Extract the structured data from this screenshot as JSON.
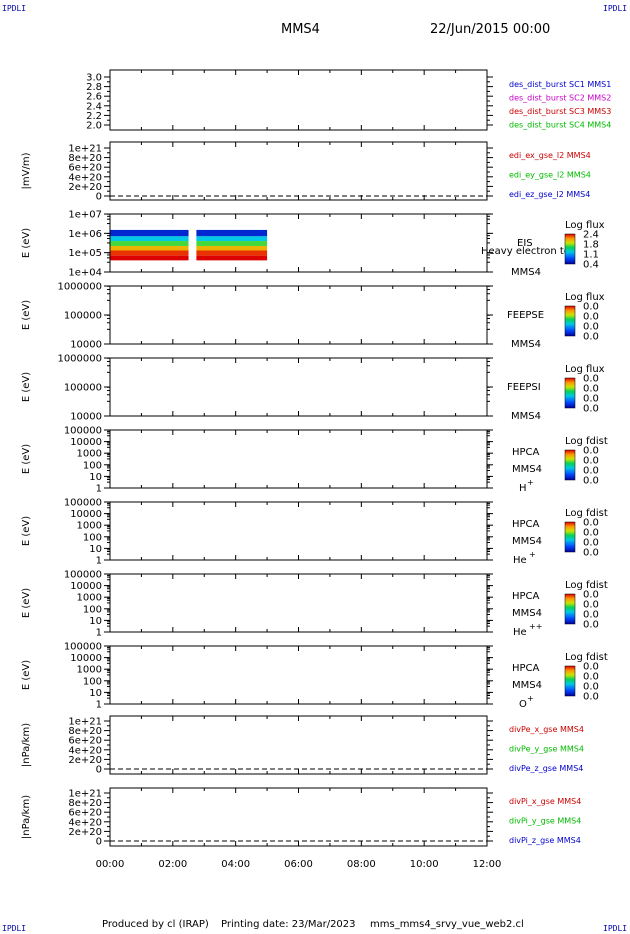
{
  "header": {
    "corner_label": "IPDLI",
    "spacecraft": "MMS4",
    "datetime": "22/Jun/2015 00:00"
  },
  "footer": {
    "produced_by": "Produced by cl (IRAP)",
    "printing_date": "Printing date: 23/Mar/2023",
    "script_name": "mms_mms4_srvy_vue_web2.cl"
  },
  "colors": {
    "blue": "#0000cc",
    "magenta": "#cc00cc",
    "red": "#cc0000",
    "green": "#00bb00"
  },
  "chart_data": [
    {
      "type": "line",
      "panel": 1,
      "ylabel": "",
      "yticks": [
        "3.0",
        "2.8",
        "2.6",
        "2.4",
        "2.2",
        "2.0"
      ],
      "ylim": [
        1.9,
        3.05
      ],
      "legend": [
        {
          "text": "des_dist_burst SC1 MMS1",
          "color": "#0000cc"
        },
        {
          "text": "des_dist_burst SC2 MMS2",
          "color": "#cc00cc"
        },
        {
          "text": "des_dist_burst SC3 MMS3",
          "color": "#cc0000"
        },
        {
          "text": "des_dist_burst SC4 MMS4",
          "color": "#00bb00"
        }
      ],
      "series": []
    },
    {
      "type": "line",
      "panel": 2,
      "ylabel": "|mV/m)",
      "yticks": [
        "1e+21",
        "8e+20",
        "6e+20",
        "4e+20",
        "2e+20",
        "0"
      ],
      "ylim": [
        0,
        1e+21
      ],
      "legend": [
        {
          "text": "edi_ex_gse_l2 MMS4",
          "color": "#cc0000"
        },
        {
          "text": "edi_ey_gse_l2 MMS4",
          "color": "#00bb00"
        },
        {
          "text": "edi_ez_gse_l2 MMS4",
          "color": "#0000cc"
        }
      ],
      "zero_line": true,
      "series": []
    },
    {
      "type": "heatmap",
      "panel": 3,
      "ylabel": "E (eV)",
      "yticks": [
        "1e+07",
        "1e+06",
        "1e+05",
        "1e+04"
      ],
      "ylim": [
        10000,
        10000000
      ],
      "yscale": "log",
      "right_labels": [
        "EIS",
        "Heavy electron tof",
        "MMS4"
      ],
      "colorbar": {
        "title": "Log flux",
        "ticks": [
          "2.4",
          "1.8",
          "1.1",
          "0.4"
        ]
      },
      "data_blocks": [
        {
          "t_start": "00:00",
          "t_end": "02:30"
        },
        {
          "t_start": "02:45",
          "t_end": "05:00"
        }
      ],
      "energy_bands": [
        {
          "e_lo": 700000,
          "e_hi": 1500000,
          "level": 0.6
        },
        {
          "e_lo": 400000,
          "e_hi": 700000,
          "level": 1.2
        },
        {
          "e_lo": 220000,
          "e_hi": 400000,
          "level": 1.6
        },
        {
          "e_lo": 130000,
          "e_hi": 220000,
          "level": 2.0
        },
        {
          "e_lo": 70000,
          "e_hi": 130000,
          "level": 2.3
        },
        {
          "e_lo": 40000,
          "e_hi": 70000,
          "level": 2.4
        }
      ]
    },
    {
      "type": "heatmap",
      "panel": 4,
      "ylabel": "E (eV)",
      "yticks": [
        "1000000",
        "100000",
        "10000"
      ],
      "ylim": [
        10000,
        1000000
      ],
      "yscale": "log",
      "right_labels": [
        "FEEPSE",
        "MMS4"
      ],
      "colorbar": {
        "title": "Log flux",
        "ticks": [
          "0.0",
          "0.0",
          "0.0",
          "0.0"
        ]
      }
    },
    {
      "type": "heatmap",
      "panel": 5,
      "ylabel": "E (eV)",
      "yticks": [
        "1000000",
        "100000",
        "10000"
      ],
      "ylim": [
        10000,
        1000000
      ],
      "yscale": "log",
      "right_labels": [
        "FEEPSI",
        "MMS4"
      ],
      "colorbar": {
        "title": "Log flux",
        "ticks": [
          "0.0",
          "0.0",
          "0.0",
          "0.0"
        ]
      }
    },
    {
      "type": "heatmap",
      "panel": 6,
      "ylabel": "E (eV)",
      "yticks": [
        "100000",
        "10000",
        "1000",
        "100",
        "10",
        "1"
      ],
      "ylim": [
        1,
        100000
      ],
      "yscale": "log",
      "right_labels": [
        "HPCA",
        "MMS4"
      ],
      "species": "H",
      "species_charge": "+",
      "colorbar": {
        "title": "Log fdist",
        "ticks": [
          "0.0",
          "0.0",
          "0.0",
          "0.0"
        ]
      }
    },
    {
      "type": "heatmap",
      "panel": 7,
      "ylabel": "E (eV)",
      "yticks": [
        "100000",
        "10000",
        "1000",
        "100",
        "10",
        "1"
      ],
      "ylim": [
        1,
        100000
      ],
      "yscale": "log",
      "right_labels": [
        "HPCA",
        "MMS4"
      ],
      "species": "He",
      "species_charge": "+",
      "colorbar": {
        "title": "Log fdist",
        "ticks": [
          "0.0",
          "0.0",
          "0.0",
          "0.0"
        ]
      }
    },
    {
      "type": "heatmap",
      "panel": 8,
      "ylabel": "E (eV)",
      "yticks": [
        "100000",
        "10000",
        "1000",
        "100",
        "10",
        "1"
      ],
      "ylim": [
        1,
        100000
      ],
      "yscale": "log",
      "right_labels": [
        "HPCA",
        "MMS4"
      ],
      "species": "He",
      "species_charge": "++",
      "colorbar": {
        "title": "Log fdist",
        "ticks": [
          "0.0",
          "0.0",
          "0.0",
          "0.0"
        ]
      }
    },
    {
      "type": "heatmap",
      "panel": 9,
      "ylabel": "E (eV)",
      "yticks": [
        "100000",
        "10000",
        "1000",
        "100",
        "10",
        "1"
      ],
      "ylim": [
        1,
        100000
      ],
      "yscale": "log",
      "right_labels": [
        "HPCA",
        "MMS4"
      ],
      "species": "O",
      "species_charge": "+",
      "colorbar": {
        "title": "Log fdist",
        "ticks": [
          "0.0",
          "0.0",
          "0.0",
          "0.0"
        ]
      }
    },
    {
      "type": "line",
      "panel": 10,
      "ylabel": "|nPa/km)",
      "yticks": [
        "1e+21",
        "8e+20",
        "6e+20",
        "4e+20",
        "2e+20",
        "0"
      ],
      "ylim": [
        0,
        1e+21
      ],
      "legend": [
        {
          "text": "divPe_x_gse MMS4",
          "color": "#cc0000"
        },
        {
          "text": "divPe_y_gse MMS4",
          "color": "#00bb00"
        },
        {
          "text": "divPe_z_gse MMS4",
          "color": "#0000cc"
        }
      ],
      "zero_line": true,
      "series": []
    },
    {
      "type": "line",
      "panel": 11,
      "ylabel": "|nPa/km)",
      "yticks": [
        "1e+21",
        "8e+20",
        "6e+20",
        "4e+20",
        "2e+20",
        "0"
      ],
      "ylim": [
        0,
        1e+21
      ],
      "legend": [
        {
          "text": "divPi_x_gse MMS4",
          "color": "#cc0000"
        },
        {
          "text": "divPi_y_gse MMS4",
          "color": "#00bb00"
        },
        {
          "text": "divPi_z_gse MMS4",
          "color": "#0000cc"
        }
      ],
      "zero_line": true,
      "series": []
    }
  ],
  "x_axis": {
    "ticks": [
      "00:00",
      "02:00",
      "04:00",
      "06:00",
      "08:00",
      "10:00",
      "12:00"
    ],
    "xlim_hours": [
      0,
      12
    ]
  }
}
